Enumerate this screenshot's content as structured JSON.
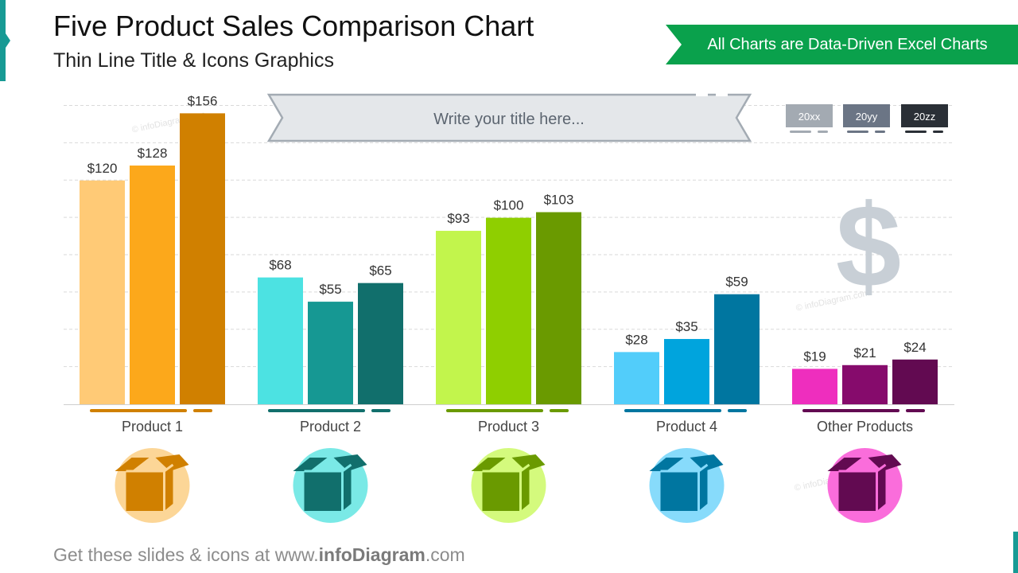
{
  "page": {
    "title": "Five Product Sales Comparison Chart",
    "subtitle": "Thin Line Title & Icons Graphics",
    "banner": "All Charts are Data-Driven Excel Charts",
    "ribbon_placeholder": "Write your title here...",
    "footer_prefix": "Get these slides & icons at www.",
    "footer_brand": "infoDiagram",
    "footer_suffix": ".com",
    "watermark": "© infoDiagram.com",
    "dollar_symbol": "$"
  },
  "colors": {
    "accent_teal": "#179a94",
    "banner_green": "#0aa14c",
    "legend": [
      "#a3aab2",
      "#6b7585",
      "#2a2f36"
    ]
  },
  "chart_data": {
    "type": "bar",
    "categories": [
      "Product 1",
      "Product 2",
      "Product 3",
      "Product 4",
      "Other Products"
    ],
    "series": [
      {
        "name": "20xx",
        "values": [
          120,
          68,
          93,
          28,
          19
        ]
      },
      {
        "name": "20yy",
        "values": [
          128,
          55,
          100,
          35,
          21
        ]
      },
      {
        "name": "20zz",
        "values": [
          156,
          65,
          103,
          59,
          24
        ]
      }
    ],
    "data_labels": [
      [
        "$120",
        "$128",
        "$156"
      ],
      [
        "$68",
        "$55",
        "$65"
      ],
      [
        "$93",
        "$100",
        "$103"
      ],
      [
        "$28",
        "$35",
        "$59"
      ],
      [
        "$19",
        "$21",
        "$24"
      ]
    ],
    "bar_colors": [
      [
        "#ffca76",
        "#fca81b",
        "#d08000"
      ],
      [
        "#4ce2e2",
        "#169893",
        "#116f6c"
      ],
      [
        "#c2f54c",
        "#8fcf00",
        "#6a9a00"
      ],
      [
        "#52cdfa",
        "#00a4dd",
        "#0076a0"
      ],
      [
        "#ee2ebe",
        "#860b6c",
        "#620a51"
      ]
    ],
    "circle_colors": [
      "#fcd697",
      "#7ae9e6",
      "#d4fa7d",
      "#87dbfb",
      "#fa6ddb"
    ],
    "icon_colors": [
      "#d08000",
      "#116f6c",
      "#6a9a00",
      "#0076a0",
      "#620a51"
    ],
    "ylim": [
      0,
      160
    ],
    "grid": true,
    "legend_position": "top-right",
    "xlabel": "",
    "ylabel": ""
  }
}
